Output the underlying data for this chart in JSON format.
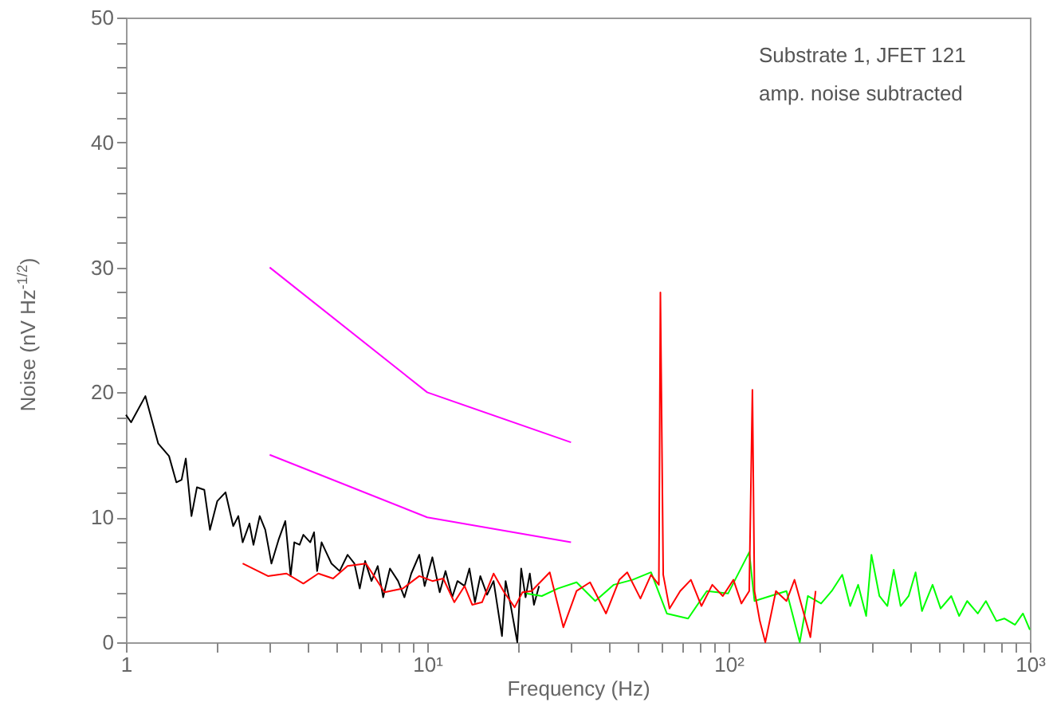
{
  "chart_data": {
    "type": "line",
    "xlabel": "Frequency (Hz)",
    "ylabel": "Noise (nV Hz$^{-1/2}$)",
    "annotations": [
      "Substrate 1, JFET 121",
      "amp. noise subtracted"
    ],
    "log": "x",
    "grid": false,
    "marker": "none",
    "line_style": "solid",
    "xlim": [
      1,
      1000
    ],
    "ylim": [
      0,
      50
    ],
    "xticks": [
      1,
      {
        "value": 2,
        "label": null
      },
      {
        "value": 3,
        "label": null
      },
      {
        "value": 4,
        "label": null
      },
      {
        "value": 5,
        "label": null
      },
      {
        "value": 6,
        "label": null
      },
      {
        "value": 7,
        "label": null
      },
      {
        "value": 8,
        "label": null
      },
      {
        "value": 9,
        "label": null
      },
      {
        "value": 10,
        "label": "10¹"
      },
      {
        "value": 20,
        "label": null
      },
      {
        "value": 30,
        "label": null
      },
      {
        "value": 40,
        "label": null
      },
      {
        "value": 50,
        "label": null
      },
      {
        "value": 60,
        "label": null
      },
      {
        "value": 70,
        "label": null
      },
      {
        "value": 80,
        "label": null
      },
      {
        "value": 90,
        "label": null
      },
      {
        "value": 100,
        "label": "10²"
      },
      {
        "value": 200,
        "label": null
      },
      {
        "value": 300,
        "label": null
      },
      {
        "value": 400,
        "label": null
      },
      {
        "value": 500,
        "label": null
      },
      {
        "value": 600,
        "label": null
      },
      {
        "value": 700,
        "label": null
      },
      {
        "value": 800,
        "label": null
      },
      {
        "value": 900,
        "label": null
      },
      {
        "value": 1000,
        "label": "10³"
      }
    ],
    "yticks": [
      0,
      {
        "value": 2,
        "label": null
      },
      {
        "value": 4,
        "label": null
      },
      {
        "value": 6,
        "label": null
      },
      {
        "value": 8,
        "label": null
      },
      10,
      {
        "value": 12,
        "label": null
      },
      {
        "value": 14,
        "label": null
      },
      {
        "value": 16,
        "label": null
      },
      {
        "value": 18,
        "label": null
      },
      20,
      {
        "value": 22,
        "label": null
      },
      {
        "value": 24,
        "label": null
      },
      {
        "value": 26,
        "label": null
      },
      {
        "value": 28,
        "label": null
      },
      30,
      {
        "value": 32,
        "label": null
      },
      {
        "value": 34,
        "label": null
      },
      {
        "value": 36,
        "label": null
      },
      {
        "value": 38,
        "label": null
      },
      40,
      {
        "value": 42,
        "label": null
      },
      {
        "value": 44,
        "label": null
      },
      {
        "value": 46,
        "label": null
      },
      {
        "value": 48,
        "label": null
      },
      50
    ],
    "series": [
      {
        "color": "#000000",
        "x": [
          1,
          1.04,
          1.16,
          1.28,
          1.39,
          1.47,
          1.53,
          1.58,
          1.65,
          1.72,
          1.82,
          1.9,
          2.01,
          2.14,
          2.27,
          2.36,
          2.44,
          2.57,
          2.65,
          2.78,
          2.9,
          3.04,
          3.21,
          3.38,
          3.52,
          3.62,
          3.77,
          3.88,
          4.09,
          4.21,
          4.31,
          4.46,
          4.62,
          4.81,
          5.12,
          5.44,
          5.73,
          5.97,
          6.22,
          6.53,
          6.85,
          7.14,
          7.52,
          8.0,
          8.4,
          8.85,
          9.41,
          9.8,
          10.4,
          11.0,
          11.5,
          12.1,
          12.6,
          13.3,
          13.8,
          14.4,
          15.0,
          15.8,
          16.6,
          17.7,
          18.2,
          18.9,
          19.9,
          20.5,
          21.2,
          21.9,
          22.6,
          23.5
        ],
        "values": [
          18.2,
          17.6,
          19.7,
          15.9,
          14.9,
          12.8,
          13.0,
          14.7,
          10.1,
          12.4,
          12.2,
          9.0,
          11.3,
          12.0,
          9.3,
          10.1,
          8.0,
          9.5,
          7.8,
          10.1,
          9.0,
          6.3,
          8.2,
          9.7,
          5.3,
          8.0,
          7.8,
          8.6,
          8.0,
          8.8,
          5.7,
          8.0,
          7.2,
          6.3,
          5.7,
          7.0,
          6.3,
          4.3,
          6.5,
          4.9,
          6.1,
          3.6,
          5.9,
          4.9,
          3.6,
          5.5,
          7.0,
          4.5,
          6.8,
          4.0,
          5.7,
          3.6,
          4.9,
          4.5,
          5.9,
          3.2,
          5.3,
          3.8,
          4.9,
          0.5,
          4.9,
          3.0,
          0,
          5.9,
          3.6,
          5.5,
          3.0,
          4.5
        ]
      },
      {
        "color": "#00ff00",
        "x": [
          21.3,
          24.0,
          27.1,
          31.3,
          36.1,
          41.6,
          48.0,
          55.3,
          62.4,
          73.4,
          84.7,
          99.6,
          117.1,
          121.9,
          137.6,
          155.7,
          172.3,
          183.3,
          202.8,
          220,
          238.4,
          253.3,
          269.2,
          286.2,
          298,
          316.7,
          336.6,
          353.3,
          372.4,
          396,
          417.5,
          438.5,
          475.4,
          505.7,
          548.3,
          582.6,
          619.2,
          671.5,
          714.5,
          774.5,
          822.4,
          893,
          948.5,
          1000
        ],
        "values": [
          3.9,
          3.7,
          4.3,
          4.8,
          3.3,
          4.6,
          5.0,
          5.6,
          2.3,
          1.9,
          4.1,
          3.9,
          7.2,
          3.3,
          3.7,
          4.1,
          0,
          3.7,
          3.1,
          4.1,
          5.4,
          2.9,
          4.6,
          2.1,
          7.0,
          3.7,
          2.9,
          5.8,
          2.9,
          3.7,
          5.6,
          2.5,
          4.6,
          2.7,
          3.7,
          2.1,
          3.3,
          2.3,
          3.3,
          1.7,
          1.9,
          1.4,
          2.3,
          1.0
        ]
      },
      {
        "color": "#ff0000",
        "x": [
          2.44,
          2.96,
          3.41,
          3.88,
          4.35,
          4.87,
          5.44,
          6.26,
          7.22,
          8.3,
          9.41,
          10.4,
          11.3,
          12.3,
          13.3,
          14.1,
          15.2,
          16.6,
          18.0,
          19.5,
          20.7,
          22.2,
          25.5,
          28.3,
          31.3,
          34.7,
          39.2,
          43.4,
          46.1,
          51.0,
          55.3,
          58.7,
          59.4,
          60.7,
          63.7,
          69.1,
          75.0,
          81.3,
          88.3,
          95.7,
          103.8,
          110.3,
          117.1,
          120,
          121.9,
          127,
          132.4,
          143.6,
          155.7,
          165.5,
          175.9,
          186.9,
          194.5
        ],
        "values": [
          6.3,
          5.3,
          5.5,
          4.7,
          5.5,
          5.1,
          6.1,
          6.3,
          4.0,
          4.3,
          5.3,
          4.9,
          5.1,
          3.2,
          4.5,
          3.0,
          3.2,
          5.5,
          4.0,
          2.8,
          4.0,
          4.1,
          5.6,
          1.2,
          4.1,
          4.8,
          2.3,
          5.0,
          5.6,
          3.5,
          5.4,
          4.6,
          28.0,
          5.4,
          2.7,
          4.1,
          5.0,
          2.9,
          4.6,
          3.7,
          5.0,
          3.1,
          4.1,
          20.2,
          4.1,
          1.7,
          0,
          4.1,
          3.3,
          5.0,
          2.7,
          0.4,
          4.1
        ]
      },
      {
        "color": "#ff00ff",
        "x": [
          3,
          10,
          30
        ],
        "values": [
          30,
          20,
          16
        ]
      },
      {
        "color": "#ff00ff",
        "x": [
          3,
          10,
          30
        ],
        "values": [
          15,
          10,
          8
        ]
      }
    ]
  }
}
